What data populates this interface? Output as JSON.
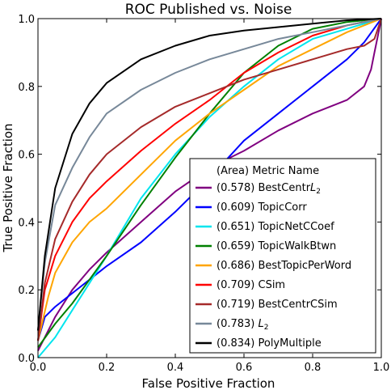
{
  "chart_data": {
    "type": "line",
    "title": "ROC Published vs. Noise",
    "xlabel": "False Positive Fraction",
    "ylabel": "True Positive Fraction",
    "xlim": [
      0,
      1
    ],
    "ylim": [
      0,
      1
    ],
    "xticks": [
      "0.0",
      "0.2",
      "0.4",
      "0.6",
      "0.8",
      "1.0"
    ],
    "yticks": [
      "0.0",
      "0.2",
      "0.4",
      "0.6",
      "0.8",
      "1.0"
    ],
    "grid": false,
    "legend": {
      "placement": "lower-right",
      "title": "(Area) Metric Name"
    },
    "series": [
      {
        "name": "BestCentrL2",
        "label": "(0.578) BestCentr",
        "label_math": "L",
        "label_sub": "2",
        "auc": 0.578,
        "color": "#800080",
        "points": [
          [
            0,
            0.02
          ],
          [
            0.05,
            0.12
          ],
          [
            0.1,
            0.2
          ],
          [
            0.15,
            0.26
          ],
          [
            0.2,
            0.31
          ],
          [
            0.3,
            0.4
          ],
          [
            0.4,
            0.49
          ],
          [
            0.5,
            0.56
          ],
          [
            0.6,
            0.61
          ],
          [
            0.7,
            0.67
          ],
          [
            0.8,
            0.72
          ],
          [
            0.9,
            0.76
          ],
          [
            0.95,
            0.8
          ],
          [
            0.97,
            0.85
          ],
          [
            0.98,
            0.9
          ],
          [
            0.99,
            0.95
          ],
          [
            1,
            1
          ]
        ]
      },
      {
        "name": "TopicCorr",
        "label": "(0.609) TopicCorr",
        "auc": 0.609,
        "color": "#0000ff",
        "points": [
          [
            0,
            0.05
          ],
          [
            0.02,
            0.12
          ],
          [
            0.05,
            0.15
          ],
          [
            0.1,
            0.19
          ],
          [
            0.15,
            0.23
          ],
          [
            0.2,
            0.27
          ],
          [
            0.3,
            0.34
          ],
          [
            0.4,
            0.43
          ],
          [
            0.5,
            0.53
          ],
          [
            0.6,
            0.64
          ],
          [
            0.7,
            0.72
          ],
          [
            0.8,
            0.8
          ],
          [
            0.9,
            0.88
          ],
          [
            0.95,
            0.93
          ],
          [
            1,
            1
          ]
        ]
      },
      {
        "name": "TopicNetCCoef",
        "label": "(0.651) TopicNetCCoef",
        "auc": 0.651,
        "color": "#00e5ee",
        "points": [
          [
            0,
            0
          ],
          [
            0.05,
            0.06
          ],
          [
            0.1,
            0.14
          ],
          [
            0.15,
            0.22
          ],
          [
            0.2,
            0.3
          ],
          [
            0.3,
            0.47
          ],
          [
            0.4,
            0.6
          ],
          [
            0.5,
            0.71
          ],
          [
            0.6,
            0.8
          ],
          [
            0.7,
            0.88
          ],
          [
            0.8,
            0.94
          ],
          [
            0.9,
            0.97
          ],
          [
            1,
            1
          ]
        ]
      },
      {
        "name": "TopicWalkBtwn",
        "label": "(0.659) TopicWalkBtwn",
        "auc": 0.659,
        "color": "#008000",
        "points": [
          [
            0,
            0.03
          ],
          [
            0.05,
            0.1
          ],
          [
            0.1,
            0.16
          ],
          [
            0.15,
            0.23
          ],
          [
            0.2,
            0.3
          ],
          [
            0.3,
            0.45
          ],
          [
            0.4,
            0.59
          ],
          [
            0.5,
            0.72
          ],
          [
            0.6,
            0.84
          ],
          [
            0.7,
            0.92
          ],
          [
            0.8,
            0.97
          ],
          [
            0.9,
            0.99
          ],
          [
            1,
            1
          ]
        ]
      },
      {
        "name": "BestTopicPerWord",
        "label": "(0.686) BestTopicPerWord",
        "auc": 0.686,
        "color": "#ffa500",
        "points": [
          [
            0,
            0.05
          ],
          [
            0.03,
            0.18
          ],
          [
            0.05,
            0.25
          ],
          [
            0.1,
            0.34
          ],
          [
            0.15,
            0.4
          ],
          [
            0.2,
            0.44
          ],
          [
            0.3,
            0.54
          ],
          [
            0.4,
            0.64
          ],
          [
            0.5,
            0.72
          ],
          [
            0.6,
            0.79
          ],
          [
            0.7,
            0.86
          ],
          [
            0.8,
            0.91
          ],
          [
            0.9,
            0.96
          ],
          [
            1,
            1
          ]
        ]
      },
      {
        "name": "CSim",
        "label": "(0.709) CSim",
        "auc": 0.709,
        "color": "#ff0000",
        "points": [
          [
            0,
            0.05
          ],
          [
            0.02,
            0.2
          ],
          [
            0.05,
            0.3
          ],
          [
            0.1,
            0.4
          ],
          [
            0.15,
            0.47
          ],
          [
            0.2,
            0.52
          ],
          [
            0.3,
            0.61
          ],
          [
            0.4,
            0.69
          ],
          [
            0.5,
            0.76
          ],
          [
            0.6,
            0.84
          ],
          [
            0.7,
            0.9
          ],
          [
            0.8,
            0.95
          ],
          [
            0.9,
            0.98
          ],
          [
            1,
            1
          ]
        ]
      },
      {
        "name": "BestCentrCSim",
        "label": "(0.719) BestCentrCSim",
        "auc": 0.719,
        "color": "#a52a2a",
        "points": [
          [
            0,
            0.05
          ],
          [
            0.02,
            0.22
          ],
          [
            0.05,
            0.35
          ],
          [
            0.1,
            0.46
          ],
          [
            0.15,
            0.54
          ],
          [
            0.2,
            0.6
          ],
          [
            0.3,
            0.68
          ],
          [
            0.4,
            0.74
          ],
          [
            0.5,
            0.78
          ],
          [
            0.6,
            0.82
          ],
          [
            0.7,
            0.85
          ],
          [
            0.8,
            0.88
          ],
          [
            0.9,
            0.91
          ],
          [
            0.95,
            0.92
          ],
          [
            0.98,
            0.94
          ],
          [
            1,
            1
          ]
        ]
      },
      {
        "name": "L2",
        "label": "(0.783) ",
        "label_math": "L",
        "label_sub": "2",
        "auc": 0.783,
        "color": "#778899",
        "points": [
          [
            0,
            0.08
          ],
          [
            0.02,
            0.28
          ],
          [
            0.05,
            0.45
          ],
          [
            0.1,
            0.56
          ],
          [
            0.15,
            0.65
          ],
          [
            0.2,
            0.72
          ],
          [
            0.3,
            0.79
          ],
          [
            0.4,
            0.84
          ],
          [
            0.5,
            0.88
          ],
          [
            0.6,
            0.91
          ],
          [
            0.7,
            0.94
          ],
          [
            0.8,
            0.96
          ],
          [
            0.9,
            0.98
          ],
          [
            1,
            1
          ]
        ]
      },
      {
        "name": "PolyMultiple",
        "label": "(0.834) PolyMultiple",
        "auc": 0.834,
        "color": "#000000",
        "points": [
          [
            0,
            0.08
          ],
          [
            0.02,
            0.3
          ],
          [
            0.05,
            0.5
          ],
          [
            0.1,
            0.66
          ],
          [
            0.15,
            0.75
          ],
          [
            0.2,
            0.81
          ],
          [
            0.3,
            0.88
          ],
          [
            0.4,
            0.92
          ],
          [
            0.5,
            0.95
          ],
          [
            0.6,
            0.965
          ],
          [
            0.7,
            0.975
          ],
          [
            0.8,
            0.985
          ],
          [
            0.9,
            0.995
          ],
          [
            1,
            1
          ]
        ]
      }
    ]
  }
}
